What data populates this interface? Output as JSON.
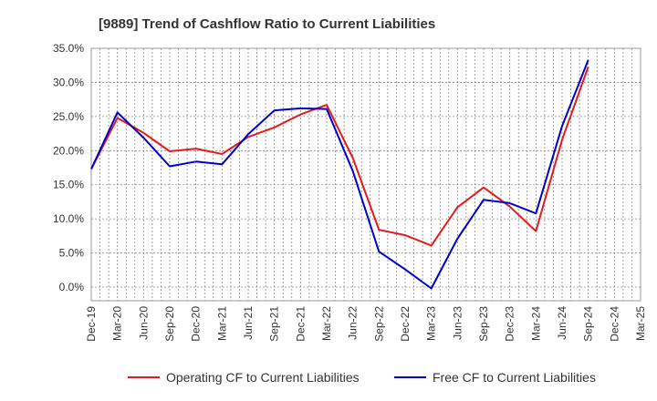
{
  "chart_data": {
    "type": "line",
    "title": "[9889]  Trend of Cashflow Ratio to Current Liabilities",
    "xlabel": "",
    "ylabel": "",
    "categories": [
      "Dec-19",
      "Mar-20",
      "Jun-20",
      "Sep-20",
      "Dec-20",
      "Mar-21",
      "Jun-21",
      "Sep-21",
      "Dec-21",
      "Mar-22",
      "Jun-22",
      "Sep-22",
      "Dec-22",
      "Mar-23",
      "Jun-23",
      "Sep-23",
      "Dec-23",
      "Mar-24",
      "Jun-24",
      "Sep-24",
      "Dec-24",
      "Mar-25"
    ],
    "ylim": [
      -2,
      35
    ],
    "yticks": [
      0,
      5,
      10,
      15,
      20,
      25,
      30,
      35
    ],
    "ytick_labels": [
      "0.0%",
      "5.0%",
      "10.0%",
      "15.0%",
      "20.0%",
      "25.0%",
      "30.0%",
      "35.0%"
    ],
    "grid": true,
    "legend_position": "bottom",
    "series": [
      {
        "name": "Operating CF to Current Liabilities",
        "color": "#e41a1c",
        "values": [
          17.3,
          24.8,
          22.6,
          19.9,
          20.3,
          19.5,
          22.0,
          23.4,
          25.3,
          26.7,
          18.9,
          8.4,
          7.6,
          6.1,
          11.7,
          14.6,
          11.8,
          8.2,
          21.6,
          32.3,
          null,
          null
        ]
      },
      {
        "name": "Free CF to Current Liabilities",
        "color": "#0000cc",
        "values": [
          17.3,
          25.6,
          21.9,
          17.7,
          18.4,
          18.0,
          22.4,
          25.9,
          26.2,
          26.1,
          17.0,
          5.2,
          2.6,
          -0.2,
          7.1,
          12.8,
          12.3,
          10.8,
          23.6,
          33.3,
          null,
          null
        ]
      }
    ]
  }
}
